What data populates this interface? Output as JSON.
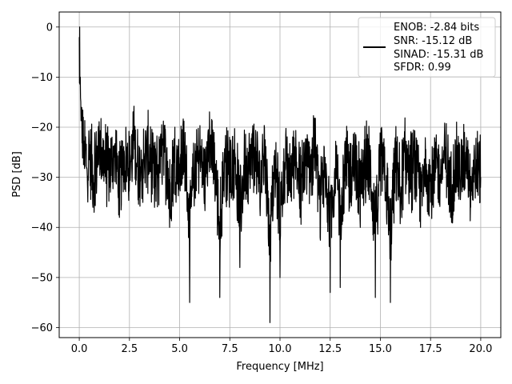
{
  "chart_data": {
    "type": "line",
    "title": "",
    "xlabel": "Frequency [MHz]",
    "ylabel": "PSD [dB]",
    "xlim": [
      -1.0,
      21.0
    ],
    "ylim": [
      -62.0,
      3.0
    ],
    "x_ticks": [
      0.0,
      2.5,
      5.0,
      7.5,
      10.0,
      12.5,
      15.0,
      17.5,
      20.0
    ],
    "x_tick_labels": [
      "0.0",
      "2.5",
      "5.0",
      "7.5",
      "10.0",
      "12.5",
      "15.0",
      "17.5",
      "20.0"
    ],
    "y_ticks": [
      0,
      -10,
      -20,
      -30,
      -40,
      -50,
      -60
    ],
    "y_tick_labels": [
      "0",
      "−10",
      "−20",
      "−30",
      "−40",
      "−50",
      "−60"
    ],
    "grid": true,
    "legend_position": "top-right",
    "line_color": "#000000",
    "legend_entries": [
      "ENOB: -2.84 bits",
      "SNR: -15.12 dB",
      "SINAD: -15.31 dB",
      "SFDR: 0.99"
    ],
    "series": [
      {
        "values_note": "",
        "x": [
          0.0,
          0.02,
          0.05,
          0.1,
          0.15,
          0.2,
          0.3,
          0.4,
          0.5,
          0.75,
          1.0,
          1.25,
          1.5,
          1.75,
          2.0,
          2.25,
          2.5,
          2.75,
          3.0,
          3.25,
          3.5,
          3.75,
          4.0,
          4.25,
          4.5,
          4.75,
          5.0,
          5.25,
          5.5,
          5.75,
          6.0,
          6.25,
          6.5,
          6.75,
          7.0,
          7.25,
          7.5,
          7.75,
          8.0,
          8.25,
          8.5,
          8.75,
          9.0,
          9.25,
          9.5,
          9.75,
          10.0,
          10.25,
          10.5,
          10.75,
          11.0,
          11.25,
          11.5,
          11.75,
          12.0,
          12.25,
          12.5,
          12.75,
          13.0,
          13.25,
          13.5,
          13.75,
          14.0,
          14.25,
          14.5,
          14.75,
          15.0,
          15.25,
          15.5,
          15.75,
          16.0,
          16.25,
          16.5,
          16.75,
          17.0,
          17.25,
          17.5,
          17.75,
          18.0,
          18.25,
          18.5,
          18.75,
          19.0,
          19.25,
          19.5,
          19.75,
          20.0
        ],
        "y": [
          -2,
          0,
          -10,
          -16,
          -22,
          -18,
          -25,
          -30,
          -26,
          -35,
          -22,
          -28,
          -32,
          -24,
          -38,
          -26,
          -30,
          -22,
          -34,
          -28,
          -24,
          -36,
          -29,
          -25,
          -40,
          -27,
          -31,
          -23,
          -55,
          -29,
          -26,
          -35,
          -22,
          -30,
          -54,
          -27,
          -33,
          -25,
          -48,
          -28,
          -30,
          -24,
          -36,
          -26,
          -59,
          -29,
          -50,
          -27,
          -33,
          -25,
          -38,
          -28,
          -31,
          -23,
          -42,
          -26,
          -53,
          -29,
          -52,
          -27,
          -35,
          -24,
          -40,
          -28,
          -30,
          -54,
          -26,
          -33,
          -55,
          -29,
          -37,
          -25,
          -32,
          -28,
          -40,
          -26,
          -35,
          -29,
          -31,
          -24,
          -38,
          -27,
          -33,
          -25,
          -36,
          -28,
          -30
        ]
      }
    ]
  }
}
